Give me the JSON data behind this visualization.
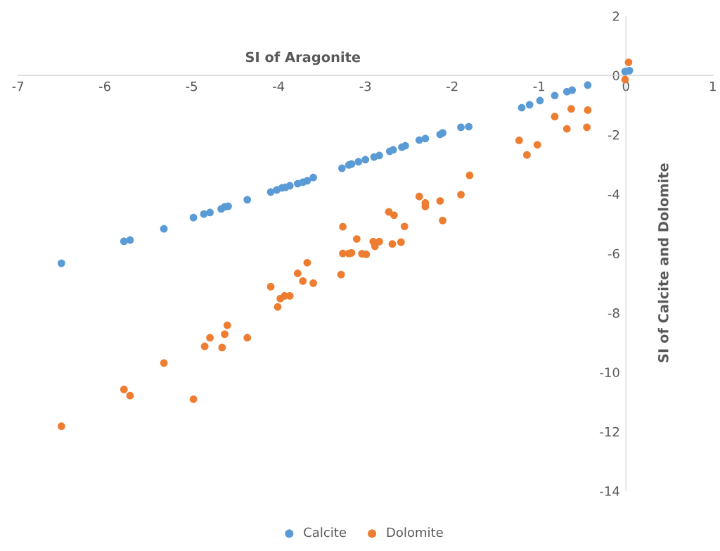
{
  "chart_data": {
    "type": "scatter",
    "xlabel": "SI of Aragonite",
    "ylabel": "SI of Calcite and Dolomite",
    "xlim": [
      -7,
      1
    ],
    "xticks": [
      -7,
      -6,
      -5,
      -4,
      -3,
      -2,
      -1,
      0,
      1
    ],
    "ylim": [
      -14,
      2
    ],
    "yticks": [
      -14,
      -12,
      -10,
      -8,
      -6,
      -4,
      -2,
      0,
      2
    ],
    "grid": false,
    "legend": "bottom",
    "marker": "circle",
    "series": [
      {
        "name": "Calcite",
        "color": "#5b9bd5",
        "x": [
          -6.5,
          -5.78,
          -5.71,
          -5.32,
          -4.98,
          -4.86,
          -4.79,
          -4.66,
          -4.62,
          -4.58,
          -4.36,
          -4.09,
          -4.02,
          -3.96,
          -3.92,
          -3.87,
          -3.78,
          -3.72,
          -3.67,
          -3.6,
          -3.27,
          -3.19,
          -3.16,
          -3.08,
          -3.0,
          -2.9,
          -2.84,
          -2.72,
          -2.68,
          -2.58,
          -2.54,
          -2.38,
          -2.31,
          -2.14,
          -2.11,
          -1.9,
          -1.81,
          -1.2,
          -1.11,
          -0.99,
          -0.82,
          -0.68,
          -0.62,
          -0.44,
          -0.01,
          0.04
        ],
        "values": [
          -6.33,
          -5.59,
          -5.55,
          -5.17,
          -4.79,
          -4.67,
          -4.62,
          -4.5,
          -4.43,
          -4.41,
          -4.19,
          -3.93,
          -3.86,
          -3.79,
          -3.77,
          -3.72,
          -3.65,
          -3.6,
          -3.55,
          -3.44,
          -3.13,
          -3.02,
          -2.99,
          -2.91,
          -2.84,
          -2.75,
          -2.7,
          -2.56,
          -2.51,
          -2.42,
          -2.37,
          -2.18,
          -2.13,
          -1.99,
          -1.94,
          -1.75,
          -1.73,
          -1.09,
          -0.99,
          -0.85,
          -0.68,
          -0.55,
          -0.5,
          -0.33,
          0.13,
          0.16
        ]
      },
      {
        "name": "Dolomite",
        "color": "#ed7d31",
        "x": [
          -6.5,
          -5.78,
          -5.71,
          -5.32,
          -4.98,
          -4.85,
          -4.79,
          -4.65,
          -4.62,
          -4.59,
          -4.36,
          -4.09,
          -4.01,
          -3.98,
          -3.93,
          -3.87,
          -3.78,
          -3.72,
          -3.67,
          -3.6,
          -3.28,
          -3.26,
          -3.26,
          -3.19,
          -3.16,
          -3.1,
          -3.04,
          -2.99,
          -2.91,
          -2.89,
          -2.84,
          -2.73,
          -2.69,
          -2.67,
          -2.59,
          -2.55,
          -2.38,
          -2.31,
          -2.31,
          -2.14,
          -2.11,
          -1.9,
          -1.8,
          -1.23,
          -1.14,
          -1.02,
          -0.82,
          -0.68,
          -0.63,
          -0.45,
          -0.44,
          -0.01,
          0.03
        ],
        "values": [
          -11.82,
          -10.58,
          -10.79,
          -9.69,
          -10.91,
          -9.13,
          -8.84,
          -9.17,
          -8.72,
          -8.42,
          -8.84,
          -7.12,
          -7.8,
          -7.52,
          -7.43,
          -7.43,
          -6.67,
          -6.93,
          -6.31,
          -7.0,
          -6.71,
          -5.1,
          -6.0,
          -6.0,
          -5.98,
          -5.51,
          -6.01,
          -6.03,
          -5.6,
          -5.76,
          -5.6,
          -4.6,
          -5.68,
          -4.71,
          -5.62,
          -5.09,
          -4.08,
          -4.3,
          -4.42,
          -4.23,
          -4.89,
          -4.02,
          -3.37,
          -2.19,
          -2.68,
          -2.34,
          -1.39,
          -1.8,
          -1.13,
          -1.75,
          -1.17,
          -0.14,
          0.44
        ]
      }
    ]
  }
}
